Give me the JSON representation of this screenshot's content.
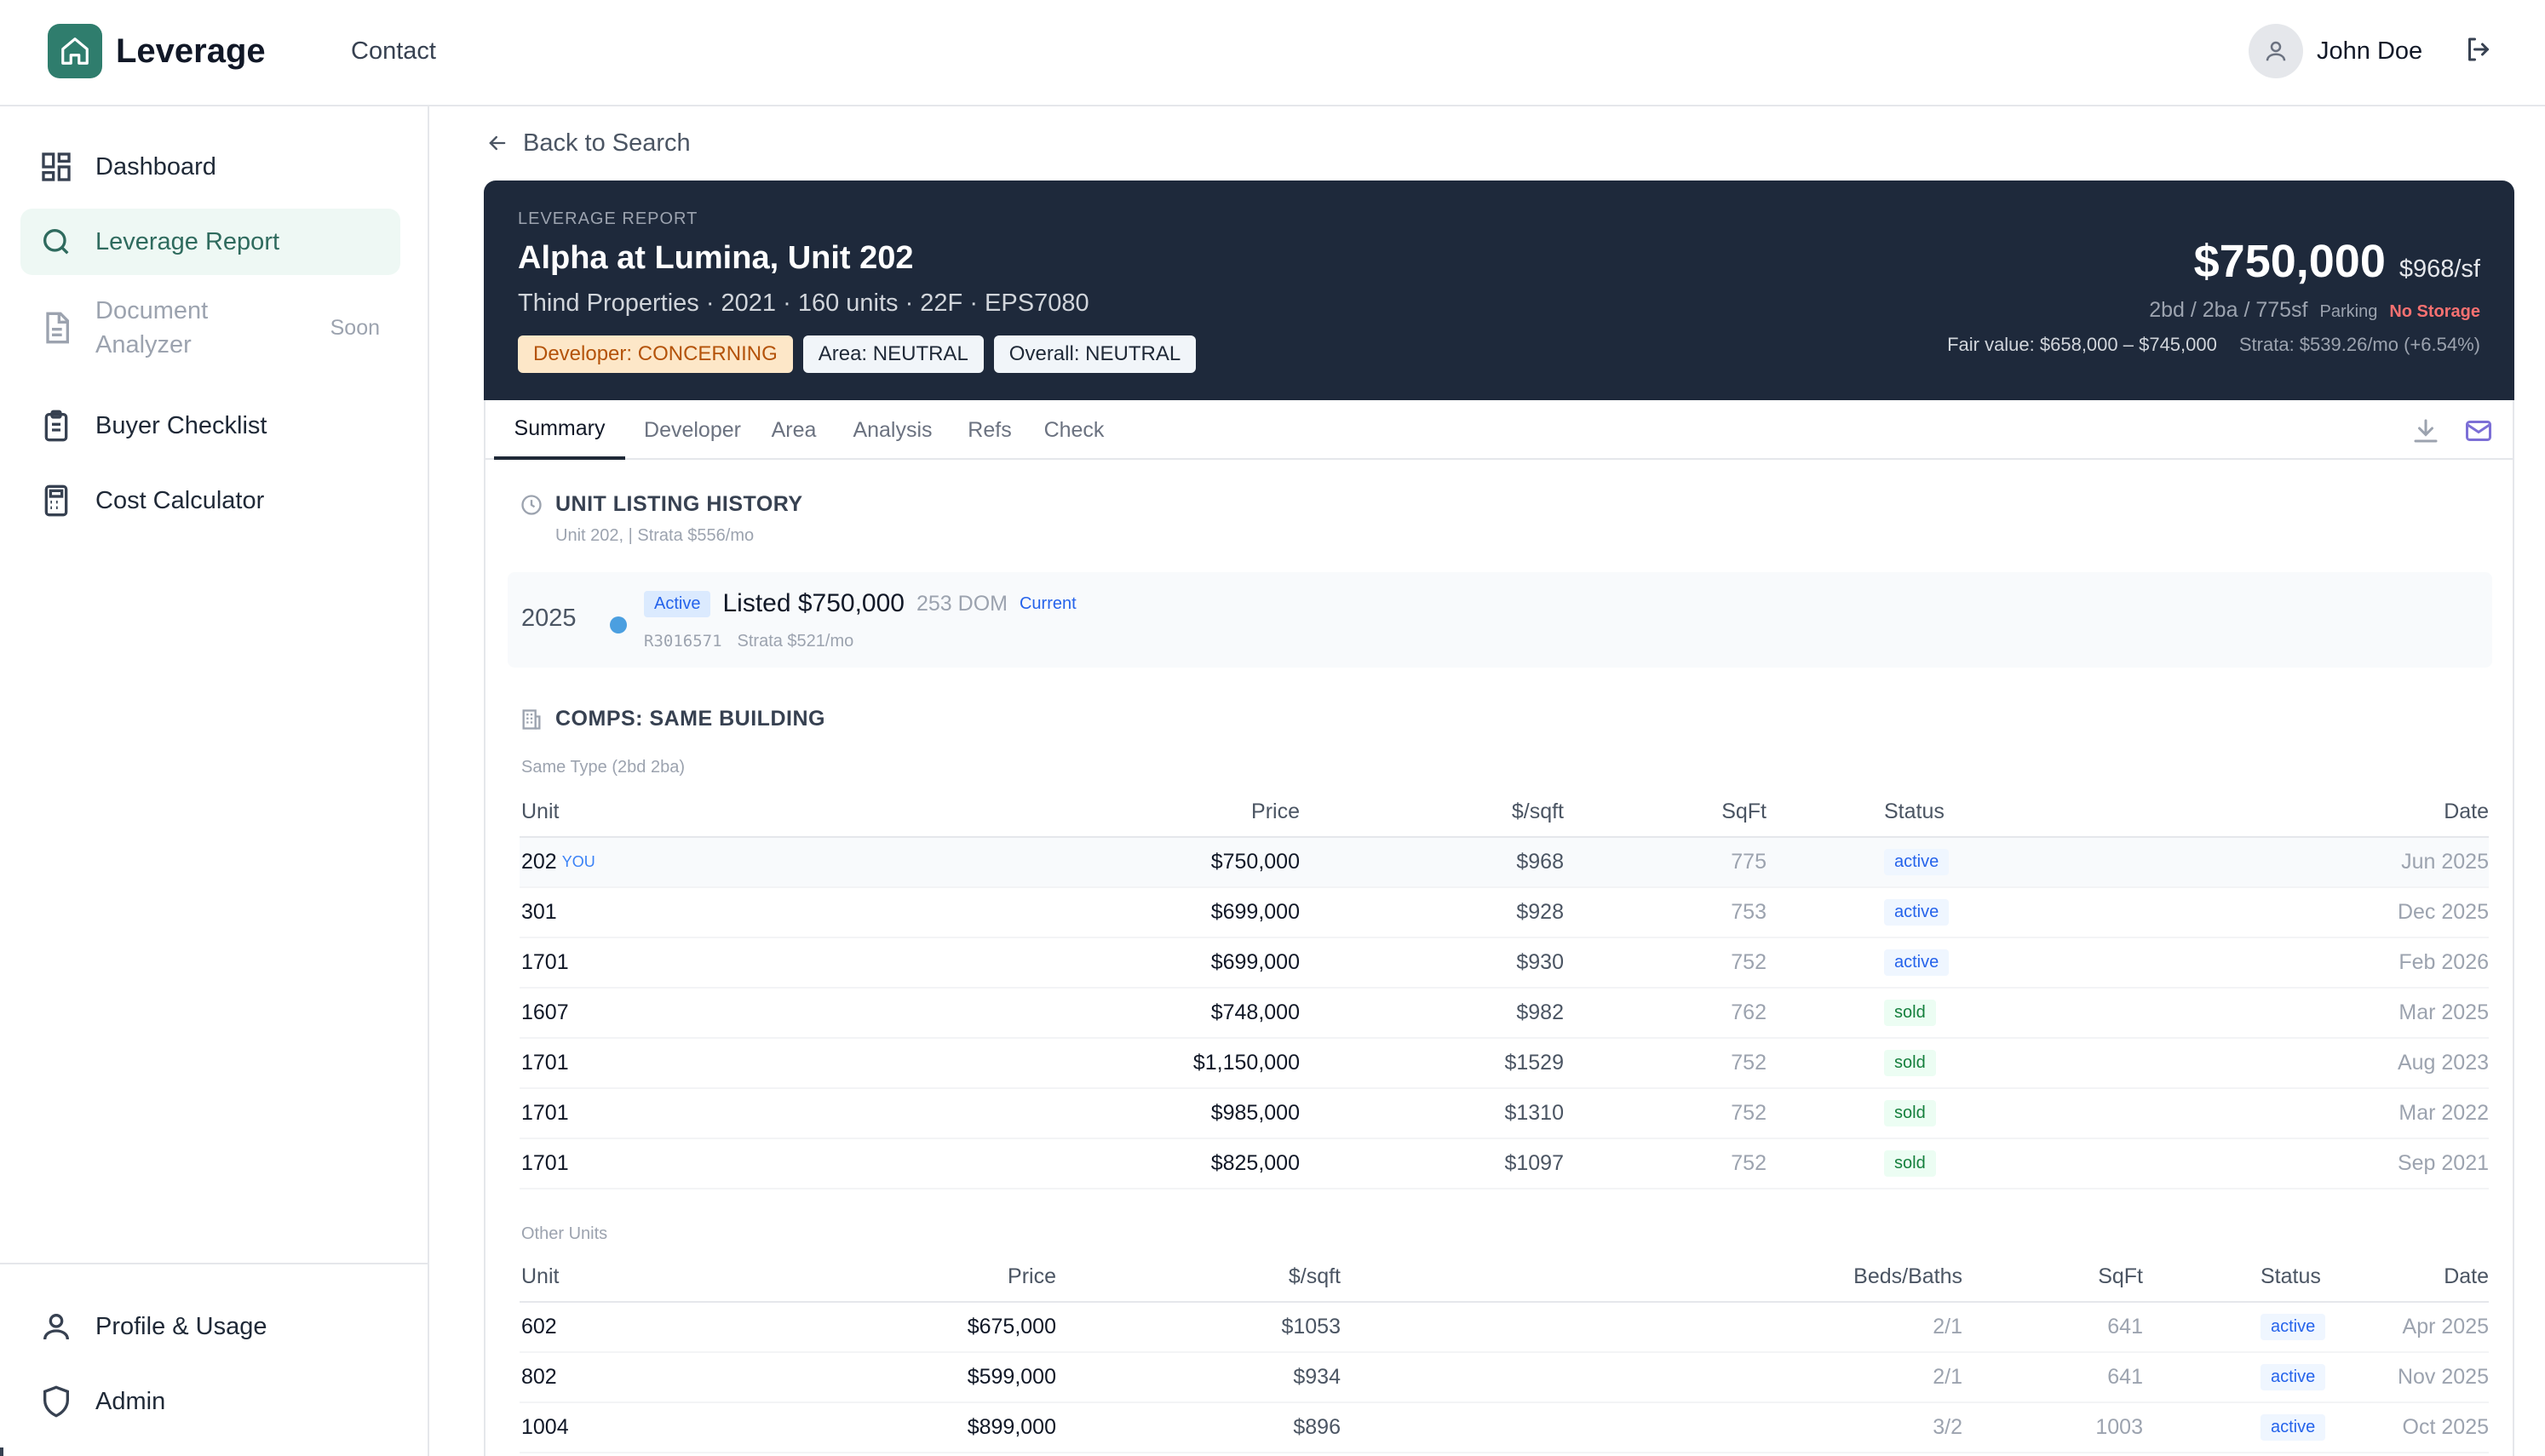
{
  "app": {
    "name": "Leverage",
    "nav_contact": "Contact"
  },
  "user": {
    "name": "John Doe"
  },
  "sidebar": {
    "items": [
      {
        "label": "Dashboard",
        "icon": "grid-icon"
      },
      {
        "label": "Leverage Report",
        "icon": "search-icon",
        "active": true
      },
      {
        "label": "Document Analyzer",
        "icon": "document-icon",
        "badge": "Soon",
        "disabled": true
      },
      {
        "label": "Buyer Checklist",
        "icon": "clipboard-icon"
      },
      {
        "label": "Cost Calculator",
        "icon": "calculator-icon"
      }
    ],
    "bottom": [
      {
        "label": "Profile & Usage",
        "icon": "user-icon"
      },
      {
        "label": "Admin",
        "icon": "shield-icon"
      }
    ]
  },
  "back_link": "Back to Search",
  "report": {
    "kicker": "LEVERAGE REPORT",
    "title": "Alpha at Lumina, Unit 202",
    "subtitle": "Thind Properties · 2021 · 160 units · 22F · EPS7080",
    "badges": [
      "Developer: CONCERNING",
      "Area: NEUTRAL",
      "Overall: NEUTRAL"
    ],
    "price": "$750,000",
    "price_psf": "$968/sf",
    "unit_meta": "2bd / 2ba / 775sf",
    "parking": "Parking",
    "storage": "No Storage",
    "fair_value": "Fair value: $658,000 – $745,000",
    "strata": "Strata: $539.26/mo (+6.54%)"
  },
  "tabs": [
    "Summary",
    "Developer",
    "Area",
    "Analysis",
    "Refs",
    "Check"
  ],
  "listing_history": {
    "title": "UNIT LISTING HISTORY",
    "subtitle": "Unit 202, | Strata $556/mo",
    "entry": {
      "year": "2025",
      "status": "Active",
      "listed": "Listed $750,000",
      "dom": "253 DOM",
      "current": "Current",
      "mls": "R3016571",
      "strata": "Strata $521/mo"
    }
  },
  "comps": {
    "title": "COMPS: SAME BUILDING",
    "same_type": {
      "caption": "Same Type (2bd 2ba)",
      "headers": [
        "Unit",
        "Price",
        "$/sqft",
        "SqFt",
        "Status",
        "Date"
      ],
      "you_tag": "YOU",
      "rows": [
        {
          "unit": "202",
          "price": "$750,000",
          "psf": "$968",
          "sqft": "775",
          "status": "active",
          "date": "Jun 2025",
          "you": true
        },
        {
          "unit": "301",
          "price": "$699,000",
          "psf": "$928",
          "sqft": "753",
          "status": "active",
          "date": "Dec 2025"
        },
        {
          "unit": "1701",
          "price": "$699,000",
          "psf": "$930",
          "sqft": "752",
          "status": "active",
          "date": "Feb 2026"
        },
        {
          "unit": "1607",
          "price": "$748,000",
          "psf": "$982",
          "sqft": "762",
          "status": "sold",
          "date": "Mar 2025"
        },
        {
          "unit": "1701",
          "price": "$1,150,000",
          "psf": "$1529",
          "sqft": "752",
          "status": "sold",
          "date": "Aug 2023"
        },
        {
          "unit": "1701",
          "price": "$985,000",
          "psf": "$1310",
          "sqft": "752",
          "status": "sold",
          "date": "Mar 2022"
        },
        {
          "unit": "1701",
          "price": "$825,000",
          "psf": "$1097",
          "sqft": "752",
          "status": "sold",
          "date": "Sep 2021"
        }
      ]
    },
    "other_units": {
      "caption": "Other Units",
      "headers": [
        "Unit",
        "Price",
        "$/sqft",
        "Beds/Baths",
        "SqFt",
        "Status",
        "Date"
      ],
      "rows": [
        {
          "unit": "602",
          "price": "$675,000",
          "psf": "$1053",
          "beds": "2/1",
          "sqft": "641",
          "status": "active",
          "date": "Apr 2025"
        },
        {
          "unit": "802",
          "price": "$599,000",
          "psf": "$934",
          "beds": "2/1",
          "sqft": "641",
          "status": "active",
          "date": "Nov 2025"
        },
        {
          "unit": "1004",
          "price": "$899,000",
          "psf": "$896",
          "beds": "3/2",
          "sqft": "1003",
          "status": "active",
          "date": "Oct 2025"
        }
      ]
    }
  },
  "colors": {
    "brand": "#2f7d6d",
    "hero_bg": "#1e293b",
    "accent_blue": "#2563eb",
    "warn_bg": "#fde7c8"
  }
}
